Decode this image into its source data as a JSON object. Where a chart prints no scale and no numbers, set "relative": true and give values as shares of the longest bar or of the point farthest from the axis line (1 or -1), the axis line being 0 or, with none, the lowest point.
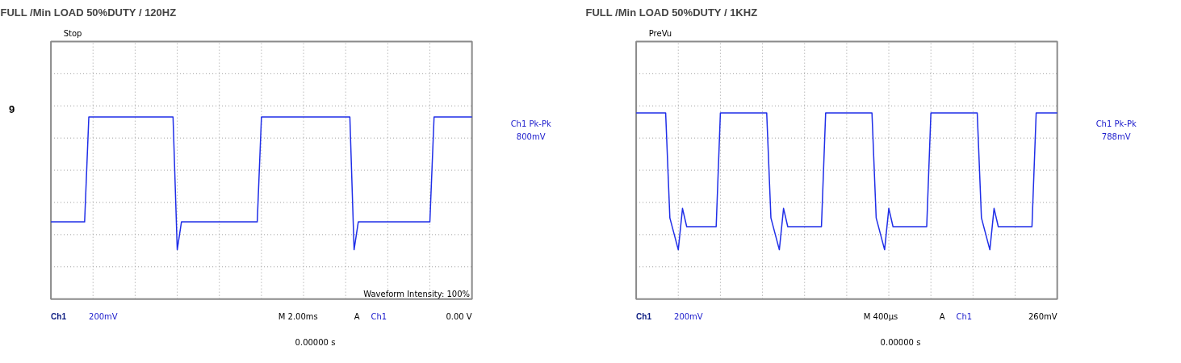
{
  "chart_data": [
    {
      "type": "line",
      "title": "FULL /Min LOAD 50%DUTY / 120HZ",
      "relative": true,
      "grid": true,
      "categories": [
        null,
        null,
        null,
        null,
        null,
        null,
        null,
        null,
        null,
        null,
        null,
        null,
        null,
        null,
        null,
        null,
        null,
        null,
        null,
        null,
        null,
        null,
        null,
        null,
        null,
        null,
        null,
        null,
        null,
        null,
        null,
        null,
        null,
        null,
        null,
        null,
        null,
        null,
        null,
        null,
        null,
        null,
        null,
        null,
        null,
        null,
        null,
        null,
        null,
        null,
        null,
        null,
        null,
        null,
        null,
        null,
        null,
        null,
        null,
        null,
        null,
        null,
        null,
        null,
        null,
        null,
        null,
        null,
        null,
        null,
        null,
        null,
        null,
        null,
        null,
        null,
        null,
        null,
        null,
        null,
        null,
        null,
        null,
        null,
        null,
        null,
        null,
        null,
        null,
        null,
        null,
        null,
        null,
        null,
        null,
        null,
        null,
        null,
        null,
        null,
        null
      ],
      "series": [
        {
          "color": "#1f2ee8",
          "values": [
            -0.65,
            -0.65,
            -0.65,
            -0.65,
            -0.65,
            -0.65,
            -0.65,
            -0.65,
            -0.65,
            0.67,
            0.67,
            0.67,
            0.67,
            0.67,
            0.67,
            0.67,
            0.67,
            0.67,
            0.67,
            0.67,
            0.67,
            0.67,
            0.67,
            0.67,
            0.67,
            0.67,
            0.67,
            0.67,
            0.67,
            0.67,
            -1,
            -0.65,
            -0.65,
            -0.65,
            -0.65,
            -0.65,
            -0.65,
            -0.65,
            -0.65,
            -0.65,
            -0.65,
            -0.65,
            -0.65,
            -0.65,
            -0.65,
            -0.65,
            -0.65,
            -0.65,
            -0.65,
            -0.65,
            0.67,
            0.67,
            0.67,
            0.67,
            0.67,
            0.67,
            0.67,
            0.67,
            0.67,
            0.67,
            0.67,
            0.67,
            0.67,
            0.67,
            0.67,
            0.67,
            0.67,
            0.67,
            0.67,
            0.67,
            0.67,
            0.67,
            -1,
            -0.65,
            -0.65,
            -0.65,
            -0.65,
            -0.65,
            -0.65,
            -0.65,
            -0.65,
            -0.65,
            -0.65,
            -0.65,
            -0.65,
            -0.65,
            -0.65,
            -0.65,
            -0.65,
            -0.65,
            -0.65,
            0.67,
            0.67,
            0.67,
            0.67,
            0.67,
            0.67,
            0.67,
            0.67,
            0.67,
            0.67
          ]
        }
      ],
      "annotations": [
        "Stop",
        "Ch1 Pk-Pk",
        "800mV",
        "Ch1",
        "200mV",
        "M 2.00ms",
        "A",
        "Ch1",
        "0.00 V",
        "0.00000 s",
        "Waveform Intensity: 100%",
        "9"
      ]
    },
    {
      "type": "line",
      "title": "FULL /Min LOAD 50%DUTY / 1KHZ",
      "relative": true,
      "grid": true,
      "categories": [
        null,
        null,
        null,
        null,
        null,
        null,
        null,
        null,
        null,
        null,
        null,
        null,
        null,
        null,
        null,
        null,
        null,
        null,
        null,
        null,
        null,
        null,
        null,
        null,
        null,
        null,
        null,
        null,
        null,
        null,
        null,
        null,
        null,
        null,
        null,
        null,
        null,
        null,
        null,
        null,
        null,
        null,
        null,
        null,
        null,
        null,
        null,
        null,
        null,
        null,
        null,
        null,
        null,
        null,
        null,
        null,
        null,
        null,
        null,
        null,
        null,
        null,
        null,
        null,
        null,
        null,
        null,
        null,
        null,
        null,
        null,
        null,
        null,
        null,
        null,
        null,
        null,
        null,
        null,
        null,
        null,
        null,
        null,
        null,
        null,
        null,
        null,
        null,
        null,
        null,
        null,
        null,
        null,
        null,
        null,
        null,
        null,
        null,
        null,
        null,
        null
      ],
      "series": [
        {
          "color": "#1f2ee8",
          "values": [
            0.72,
            0.72,
            0.72,
            0.72,
            0.72,
            0.72,
            0.72,
            0.72,
            -0.6,
            -0.8,
            -1,
            -0.48,
            -0.71,
            -0.71,
            -0.71,
            -0.71,
            -0.71,
            -0.71,
            -0.71,
            -0.71,
            0.72,
            0.72,
            0.72,
            0.72,
            0.72,
            0.72,
            0.72,
            0.72,
            0.72,
            0.72,
            0.72,
            0.72,
            -0.6,
            -0.8,
            -1,
            -0.48,
            -0.71,
            -0.71,
            -0.71,
            -0.71,
            -0.71,
            -0.71,
            -0.71,
            -0.71,
            -0.71,
            0.72,
            0.72,
            0.72,
            0.72,
            0.72,
            0.72,
            0.72,
            0.72,
            0.72,
            0.72,
            0.72,
            0.72,
            -0.6,
            -0.8,
            -1,
            -0.48,
            -0.71,
            -0.71,
            -0.71,
            -0.71,
            -0.71,
            -0.71,
            -0.71,
            -0.71,
            -0.71,
            0.72,
            0.72,
            0.72,
            0.72,
            0.72,
            0.72,
            0.72,
            0.72,
            0.72,
            0.72,
            0.72,
            0.72,
            -0.6,
            -0.8,
            -1,
            -0.48,
            -0.71,
            -0.71,
            -0.71,
            -0.71,
            -0.71,
            -0.71,
            -0.71,
            -0.71,
            -0.71,
            0.72,
            0.72,
            0.72,
            0.72,
            0.72,
            0.72
          ]
        }
      ],
      "annotations": [
        "PreVu",
        "Ch1 Pk-Pk",
        "788mV",
        "Ch1",
        "200mV",
        "M 400µs",
        "A",
        "Ch1",
        "260mV",
        "0.00000 s"
      ]
    }
  ]
}
